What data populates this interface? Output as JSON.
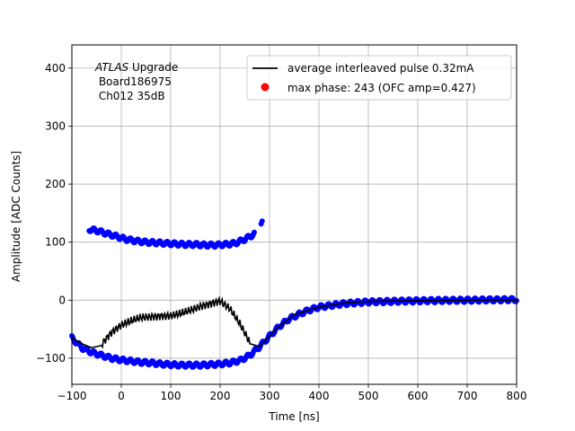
{
  "chart_data": {
    "type": "scatter",
    "xlabel": "Time [ns]",
    "ylabel": "Amplitude [ADC Counts]",
    "xlim": [
      -100,
      800
    ],
    "ylim": [
      -145,
      440
    ],
    "grid": true,
    "legend_position": "top-right",
    "x_ticks": [
      -100,
      0,
      100,
      200,
      300,
      400,
      500,
      600,
      700,
      800
    ],
    "y_ticks": [
      -100,
      0,
      100,
      200,
      300,
      400
    ],
    "annotation": {
      "prefix": "ATLAS",
      "suffix": " Upgrade",
      "line2": " Board186975",
      "line3": " Ch012 35dB"
    },
    "series": [
      {
        "name": "average interleaved pulse 0.32mA",
        "kind": "line",
        "color": "#000000",
        "x": [
          -100,
          -80,
          -60,
          -40,
          -20,
          0,
          20,
          40,
          60,
          80,
          100,
          120,
          140,
          160,
          180,
          200,
          220,
          240,
          260,
          280,
          300,
          320,
          350,
          400,
          450,
          500,
          600,
          700,
          800
        ],
        "y": [
          -65,
          -75,
          -82,
          -78,
          -60,
          -48,
          -40,
          -32,
          -28,
          -24,
          -22,
          -18,
          -14,
          -10,
          -8,
          -6,
          -20,
          -45,
          -75,
          -80,
          -62,
          -45,
          -25,
          -12,
          -5,
          -2,
          -1,
          0,
          0
        ]
      },
      {
        "name": "max phase: 243 (OFC amp=0.427)",
        "kind": "scatter",
        "color": "#0000ff",
        "legend_marker_color": "#ff0000",
        "lower_band": {
          "x": [
            -100,
            -80,
            -60,
            -40,
            -20,
            0,
            20,
            40,
            60,
            80,
            100,
            120,
            140,
            160,
            180,
            200,
            220,
            240,
            260,
            280,
            300,
            320,
            340,
            360,
            380,
            400,
            450,
            500,
            550,
            600,
            700,
            800
          ],
          "y": [
            -65,
            -82,
            -90,
            -95,
            -100,
            -103,
            -105,
            -107,
            -108,
            -110,
            -111,
            -112,
            -112,
            -112,
            -111,
            -110,
            -108,
            -104,
            -95,
            -80,
            -62,
            -45,
            -32,
            -24,
            -17,
            -12,
            -6,
            -3,
            -2,
            -1,
            0,
            1
          ]
        },
        "upper_band": {
          "x": [
            -65,
            -50,
            -30,
            -10,
            10,
            30,
            50,
            70,
            90,
            110,
            130,
            150,
            170,
            190,
            210,
            230,
            250,
            265,
            275,
            285
          ],
          "y": [
            122,
            120,
            115,
            110,
            105,
            102,
            100,
            99,
            98,
            97,
            96,
            96,
            95,
            95,
            96,
            98,
            105,
            112,
            118,
            133
          ]
        }
      }
    ]
  }
}
